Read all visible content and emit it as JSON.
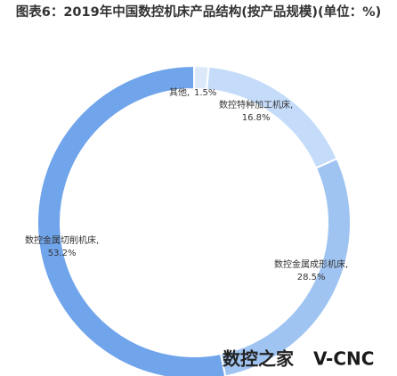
{
  "chart_data": {
    "type": "pie",
    "title": "图表6：2019年中国数控机床产品结构(按产品规模)(单位：%)",
    "categories": [
      "其他,",
      "数控特种加工机床,",
      "数控金属成形机床,",
      "数控金属切削机床,"
    ],
    "values": [
      1.5,
      16.8,
      28.5,
      53.2
    ],
    "value_labels": [
      "1.5%",
      "16.8%",
      "28.5%",
      "53.2%"
    ],
    "colors": [
      "#dce9fb",
      "#c4dcfa",
      "#a0c4f2",
      "#70a4eb"
    ],
    "donut": true
  },
  "watermark": [
    "数控之家",
    "V-CNC"
  ]
}
